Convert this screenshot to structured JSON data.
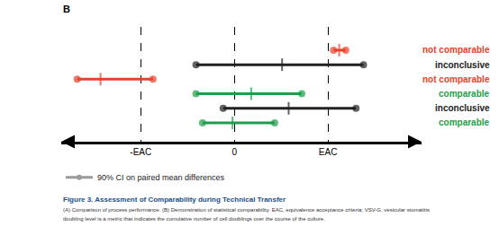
{
  "chart_data": {
    "type": "interval",
    "panel_label": "B",
    "xlim": [
      -1.85,
      2.0
    ],
    "xticks": [
      {
        "value": -1,
        "label": "-EAC"
      },
      0,
      {
        "value": 1,
        "label": "EAC"
      }
    ],
    "grid": true,
    "tick_labels": "x",
    "legend": "bottom left",
    "legend_label": "90% CI on paired mean differences",
    "legend_color": "#9a9a9a",
    "intervals": [
      {
        "label": "not comparable",
        "color": "#e8412c",
        "lower": 1.06,
        "mean": 1.12,
        "upper": 1.19
      },
      {
        "label": "inconclusive",
        "color": "#222222",
        "lower": -0.41,
        "mean": 0.51,
        "upper": 1.38
      },
      {
        "label": "not comparable",
        "color": "#e8412c",
        "lower": -1.68,
        "mean": -1.43,
        "upper": -0.87
      },
      {
        "label": "comparable",
        "color": "#1e9e4a",
        "lower": -0.41,
        "mean": 0.18,
        "upper": 0.72
      },
      {
        "label": "inconclusive",
        "color": "#222222",
        "lower": -0.12,
        "mean": 0.58,
        "upper": 1.3
      },
      {
        "label": "comparable",
        "color": "#1e9e4a",
        "lower": -0.34,
        "mean": -0.02,
        "upper": 0.43
      }
    ],
    "caption_title": "Figure 3. Assessment of Comparability during Technical Transfer",
    "caption": [
      "(A) Comparison of process performance. (B) Demonstration of statistical comparability. EAC, equivalence acceptance criteria; VSV-G, vesicular stomatitis",
      "doubling level is a metric that indicates the cumulative number of cell doublings over the course of the culture."
    ]
  }
}
